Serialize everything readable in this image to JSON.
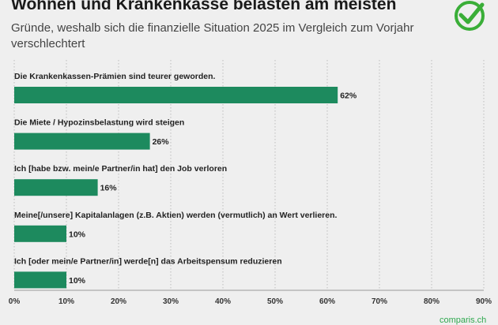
{
  "title": "Wohnen und Krankenkasse belasten am meisten",
  "subtitle": "Gründe, weshalb sich die finanzielle Situation 2025 im Vergleich zum Vorjahr verschlechtert",
  "brand": "comparis.ch",
  "colors": {
    "bar": "#1d8a5e",
    "logo": "#3aae38",
    "grid": "#bdbdbd"
  },
  "logo_icon": "checkmark-circle-icon",
  "chart_data": {
    "type": "bar",
    "orientation": "horizontal",
    "categories": [
      "Die Krankenkassen-Prämien sind teurer geworden.",
      "Die Miete / Hypozinsbelastung wird steigen",
      "Ich [habe bzw. mein/e Partner/in hat] den Job verloren",
      "Meine[/unsere] Kapitalanlagen (z.B. Aktien) werden (vermutlich) an Wert verlieren.",
      "Ich [oder mein/e Partner/in] werde[n] das Arbeitspensum reduzieren"
    ],
    "values": [
      62,
      26,
      16,
      10,
      10
    ],
    "value_labels": [
      "62%",
      "26%",
      "16%",
      "10%",
      "10%"
    ],
    "xlim": [
      0,
      90
    ],
    "xticks": [
      0,
      10,
      20,
      30,
      40,
      50,
      60,
      70,
      80,
      90
    ],
    "xtick_labels": [
      "0%",
      "10%",
      "20%",
      "30%",
      "40%",
      "50%",
      "60%",
      "70%",
      "80%",
      "90%"
    ],
    "grid": true
  }
}
